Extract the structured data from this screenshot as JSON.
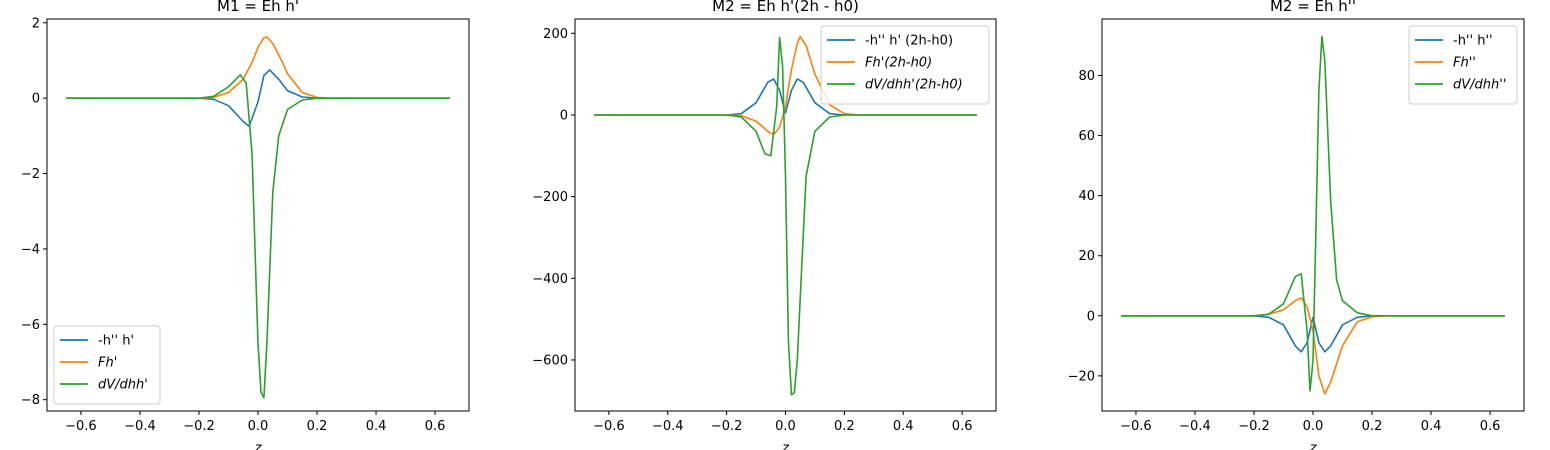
{
  "chart_data": [
    {
      "type": "line",
      "title": "M1 = Eh h'",
      "xlabel": "z",
      "ylabel": "",
      "xlim": [
        -0.715,
        0.715
      ],
      "ylim": [
        -8.3,
        2.1
      ],
      "xticks": [
        -0.6,
        -0.4,
        -0.2,
        0.0,
        0.2,
        0.4,
        0.6
      ],
      "xtick_labels": [
        "−0.6",
        "−0.4",
        "−0.2",
        "0.0",
        "0.2",
        "0.4",
        "0.6"
      ],
      "yticks": [
        -8,
        -6,
        -4,
        -2,
        0,
        2
      ],
      "ytick_labels": [
        "−8",
        "−6",
        "−4",
        "−2",
        "0",
        "2"
      ],
      "legend_position": "lower-left",
      "series": [
        {
          "name": "-h'' h'",
          "color": "#1f77b4",
          "x": [
            -0.65,
            -0.2,
            -0.15,
            -0.1,
            -0.05,
            -0.03,
            0.0,
            0.02,
            0.04,
            0.07,
            0.1,
            0.15,
            0.2,
            0.65
          ],
          "y": [
            0,
            0,
            -0.03,
            -0.2,
            -0.62,
            -0.75,
            -0.1,
            0.6,
            0.75,
            0.5,
            0.2,
            0.03,
            0,
            0
          ]
        },
        {
          "name": "Fh'",
          "color": "#ff7f0e",
          "x": [
            -0.65,
            -0.2,
            -0.15,
            -0.1,
            -0.05,
            -0.02,
            0.0,
            0.02,
            0.03,
            0.05,
            0.08,
            0.1,
            0.15,
            0.2,
            0.25,
            0.65
          ],
          "y": [
            0,
            0,
            0.02,
            0.15,
            0.5,
            0.95,
            1.35,
            1.6,
            1.62,
            1.45,
            1.0,
            0.65,
            0.15,
            0.02,
            0,
            0
          ]
        },
        {
          "name": "dV/dhh'",
          "color": "#2ca02c",
          "x": [
            -0.65,
            -0.2,
            -0.15,
            -0.1,
            -0.06,
            -0.04,
            -0.02,
            -0.01,
            0.0,
            0.01,
            0.02,
            0.03,
            0.05,
            0.07,
            0.1,
            0.15,
            0.2,
            0.65
          ],
          "y": [
            0,
            0,
            0.05,
            0.3,
            0.62,
            0.4,
            -1.5,
            -4.0,
            -6.5,
            -7.8,
            -7.95,
            -6.5,
            -2.5,
            -1.0,
            -0.3,
            -0.05,
            0,
            0
          ]
        }
      ]
    },
    {
      "type": "line",
      "title": "M2 = Eh h'(2h - h0)",
      "xlabel": "z",
      "ylabel": "",
      "xlim": [
        -0.715,
        0.715
      ],
      "ylim": [
        -725,
        235
      ],
      "xticks": [
        -0.6,
        -0.4,
        -0.2,
        0.0,
        0.2,
        0.4,
        0.6
      ],
      "xtick_labels": [
        "−0.6",
        "−0.4",
        "−0.2",
        "0.0",
        "0.2",
        "0.4",
        "0.6"
      ],
      "yticks": [
        -600,
        -400,
        -200,
        0,
        200
      ],
      "ytick_labels": [
        "−600",
        "−400",
        "−200",
        "0",
        "200"
      ],
      "legend_position": "top-right",
      "series": [
        {
          "name": "-h'' h' (2h-h0)",
          "color": "#1f77b4",
          "x": [
            -0.65,
            -0.2,
            -0.15,
            -0.1,
            -0.06,
            -0.04,
            -0.02,
            0.0,
            0.02,
            0.04,
            0.06,
            0.1,
            0.15,
            0.2,
            0.65
          ],
          "y": [
            0,
            0,
            3,
            30,
            80,
            88,
            60,
            5,
            60,
            88,
            80,
            30,
            3,
            0,
            0
          ]
        },
        {
          "name": "Fh'(2h-h0)",
          "color": "#ff7f0e",
          "x": [
            -0.65,
            -0.2,
            -0.15,
            -0.1,
            -0.06,
            -0.04,
            -0.02,
            0.0,
            0.02,
            0.04,
            0.05,
            0.07,
            0.1,
            0.15,
            0.2,
            0.25,
            0.65
          ],
          "y": [
            0,
            0,
            -2,
            -15,
            -40,
            -48,
            -30,
            20,
            110,
            175,
            192,
            170,
            100,
            25,
            3,
            0,
            0
          ]
        },
        {
          "name": "dV/dhh'(2h-h0)",
          "color": "#2ca02c",
          "x": [
            -0.65,
            -0.2,
            -0.15,
            -0.1,
            -0.07,
            -0.05,
            -0.03,
            -0.02,
            -0.01,
            0.0,
            0.01,
            0.02,
            0.03,
            0.04,
            0.05,
            0.07,
            0.1,
            0.15,
            0.2,
            0.65
          ],
          "y": [
            0,
            0,
            -5,
            -40,
            -95,
            -100,
            20,
            190,
            120,
            -150,
            -550,
            -685,
            -680,
            -600,
            -450,
            -150,
            -40,
            -5,
            0,
            0
          ]
        }
      ]
    },
    {
      "type": "line",
      "title": "M2 = Eh h''",
      "xlabel": "z",
      "ylabel": "",
      "xlim": [
        -0.715,
        0.715
      ],
      "ylim": [
        -31.7,
        98.8
      ],
      "xticks": [
        -0.6,
        -0.4,
        -0.2,
        0.0,
        0.2,
        0.4,
        0.6
      ],
      "xtick_labels": [
        "−0.6",
        "−0.4",
        "−0.2",
        "0.0",
        "0.2",
        "0.4",
        "0.6"
      ],
      "yticks": [
        -20,
        0,
        20,
        40,
        60,
        80
      ],
      "ytick_labels": [
        "−20",
        "0",
        "20",
        "40",
        "60",
        "80"
      ],
      "legend_position": "top-right",
      "series": [
        {
          "name": "-h'' h''",
          "color": "#1f77b4",
          "x": [
            -0.65,
            -0.2,
            -0.15,
            -0.1,
            -0.06,
            -0.04,
            -0.02,
            0.0,
            0.02,
            0.04,
            0.06,
            0.1,
            0.15,
            0.2,
            0.65
          ],
          "y": [
            0,
            0,
            -0.5,
            -3,
            -10,
            -12,
            -9,
            -0.5,
            -9,
            -12,
            -10,
            -3,
            -0.5,
            0,
            0
          ]
        },
        {
          "name": "Fh''",
          "color": "#ff7f0e",
          "x": [
            -0.65,
            -0.2,
            -0.15,
            -0.1,
            -0.06,
            -0.04,
            -0.02,
            0.0,
            0.02,
            0.04,
            0.06,
            0.1,
            0.15,
            0.2,
            0.25,
            0.65
          ],
          "y": [
            0,
            0,
            0.5,
            2,
            5,
            6,
            3,
            -5,
            -20,
            -26,
            -22,
            -10,
            -2,
            -0.3,
            0,
            0
          ]
        },
        {
          "name": "dV/dhh''",
          "color": "#2ca02c",
          "x": [
            -0.65,
            -0.2,
            -0.15,
            -0.1,
            -0.06,
            -0.04,
            -0.02,
            -0.01,
            0.0,
            0.01,
            0.02,
            0.03,
            0.04,
            0.06,
            0.08,
            0.1,
            0.15,
            0.2,
            0.65
          ],
          "y": [
            0,
            0,
            0.5,
            4,
            13,
            14,
            -5,
            -25,
            -15,
            30,
            75,
            93,
            85,
            38,
            12,
            5,
            1,
            0,
            0
          ]
        }
      ]
    }
  ]
}
